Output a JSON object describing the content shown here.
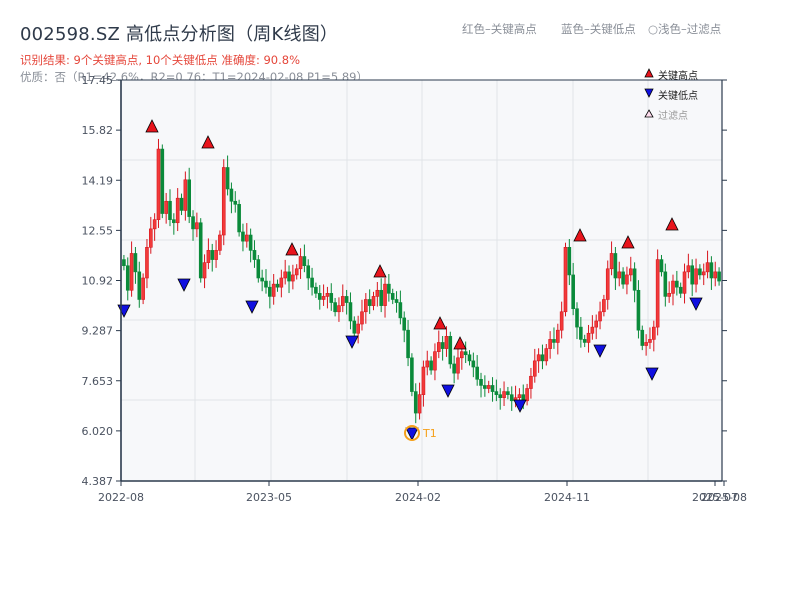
{
  "header": {
    "title": "002598.SZ 高低点分析图（周K线图）",
    "result_line": "识别结果: 9个关键高点, 10个关键低点  准确度: 90.8%",
    "quality_line": "优质：否（R1=42.6%，R2=0.76；T1=2024-02-08 P1=5.89）"
  },
  "top_legend": {
    "red": "红色–关键高点",
    "blue": "蓝色–关键低点",
    "light": "○浅色–过滤点"
  },
  "legend": {
    "high": "关键高点",
    "low": "关键低点",
    "filtered": "过滤点"
  },
  "annotation": {
    "t1_label": "T1"
  },
  "colors": {
    "up": "#d8161e",
    "down": "#0a8a3a",
    "high_marker": "#e8141c",
    "low_marker": "#1010e0",
    "t1_ring": "#f5a01a",
    "plot_bg": "#f7f8fa",
    "grid": "#e1e4e8",
    "axis": "#2b3a4d"
  },
  "chart_data": {
    "type": "candlestick",
    "title": "002598.SZ 高低点分析图（周K线图）",
    "xlabel": "",
    "ylabel": "",
    "ylim": [
      4.387,
      17.45
    ],
    "yticks": [
      "17.45",
      "15.82",
      "14.19",
      "12.55",
      "10.92",
      "9.287",
      "7.653",
      "6.020",
      "4.387"
    ],
    "xticks": [
      "2022-08",
      "2023-05",
      "2024-02",
      "2024-11",
      "2025-07",
      "2025-08"
    ],
    "grid": true,
    "legend_position": "top-right",
    "key_highs": [
      {
        "date": "2022-10",
        "price": 15.9
      },
      {
        "date": "2023-01",
        "price": 15.35
      },
      {
        "date": "2023-05",
        "price": 11.85
      },
      {
        "date": "2023-11",
        "price": 11.1
      },
      {
        "date": "2024-03",
        "price": 9.4
      },
      {
        "date": "2024-04",
        "price": 8.85
      },
      {
        "date": "2024-11",
        "price": 12.3
      },
      {
        "date": "2025-02",
        "price": 12.1
      },
      {
        "date": "2025-05",
        "price": 12.7
      }
    ],
    "key_lows": [
      {
        "date": "2022-08",
        "price": 9.8
      },
      {
        "date": "2022-12",
        "price": 10.7
      },
      {
        "date": "2023-04",
        "price": 10.0
      },
      {
        "date": "2023-10",
        "price": 8.9
      },
      {
        "date": "2024-02",
        "price": 5.89
      },
      {
        "date": "2024-03",
        "price": 7.3
      },
      {
        "date": "2024-07",
        "price": 6.8
      },
      {
        "date": "2024-12",
        "price": 8.65
      },
      {
        "date": "2025-04",
        "price": 7.8
      },
      {
        "date": "2025-06",
        "price": 10.05
      }
    ],
    "t1": {
      "date": "2024-02-08",
      "price": 5.89,
      "label": "T1"
    },
    "summary": {
      "key_highs": 9,
      "key_lows": 10,
      "accuracy": "90.8%",
      "R1": "42.6%",
      "R2": 0.76,
      "quality": "否"
    },
    "close_series": [
      11.4,
      10.6,
      11.8,
      11.2,
      10.3,
      11.0,
      12.0,
      12.6,
      12.9,
      15.2,
      13.1,
      13.5,
      12.9,
      12.8,
      13.6,
      13.2,
      14.2,
      13.0,
      12.6,
      12.8,
      11.0,
      11.5,
      11.9,
      11.6,
      11.9,
      12.4,
      14.6,
      13.9,
      13.5,
      13.4,
      12.5,
      12.2,
      12.4,
      11.9,
      11.6,
      11.0,
      10.9,
      10.7,
      10.4,
      10.8,
      10.7,
      11.0,
      11.2,
      10.9,
      11.1,
      11.3,
      11.7,
      11.4,
      11.0,
      10.7,
      10.5,
      10.3,
      10.4,
      10.5,
      10.2,
      9.9,
      10.1,
      10.4,
      10.2,
      9.6,
      9.2,
      9.5,
      9.9,
      10.3,
      10.1,
      10.4,
      10.6,
      10.1,
      10.8,
      10.5,
      10.3,
      10.2,
      9.7,
      9.3,
      8.4,
      7.3,
      6.6,
      7.2,
      8.1,
      8.3,
      8.0,
      8.6,
      8.9,
      8.7,
      9.1,
      8.2,
      7.9,
      8.4,
      8.6,
      8.5,
      8.3,
      8.1,
      7.7,
      7.5,
      7.4,
      7.5,
      7.3,
      7.2,
      7.1,
      7.3,
      7.2,
      7.0,
      7.1,
      7.2,
      7.0,
      7.4,
      7.8,
      8.3,
      8.5,
      8.3,
      8.7,
      9.0,
      8.9,
      9.3,
      9.9,
      12.0,
      11.1,
      10.0,
      9.4,
      9.0,
      8.9,
      9.2,
      9.4,
      9.6,
      9.9,
      10.3,
      11.3,
      11.8,
      11.0,
      11.2,
      10.8,
      11.1,
      11.3,
      10.6,
      9.3,
      8.8,
      8.9,
      9.0,
      9.4,
      11.6,
      11.2,
      10.4,
      10.5,
      10.9,
      10.7,
      10.5,
      11.2,
      11.4,
      10.8,
      11.3,
      11.1,
      11.2,
      11.5,
      11.0,
      11.2,
      10.9
    ]
  }
}
